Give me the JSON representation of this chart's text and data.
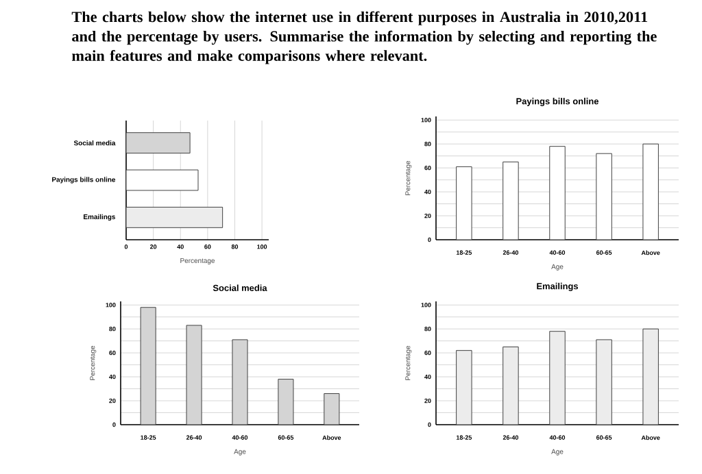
{
  "chart_data": [
    {
      "type": "bar",
      "orientation": "horizontal",
      "title": "The charts below show the internet use in different purposes in Australia in 2010,2011 and the percentage by users. Summarise the information by selecting and reporting the main features and make comparisons where relevant.",
      "categories": [
        "Social media",
        "Payings bills online",
        "Emailings"
      ],
      "values": [
        47,
        53,
        71
      ],
      "colors": [
        "#d4d4d4",
        "#ffffff",
        "#ececec"
      ],
      "xlabel": "Percentage",
      "xlim": [
        0,
        105
      ],
      "xticks": [
        0,
        20,
        40,
        60,
        80,
        100
      ],
      "grid": "x"
    },
    {
      "type": "bar",
      "title": "Payings bills online",
      "categories": [
        "18-25",
        "26-40",
        "40-60",
        "60-65",
        "Above"
      ],
      "values": [
        61,
        65,
        78,
        72,
        80
      ],
      "color": "#ffffff",
      "xlabel": "Age",
      "ylabel": "Percentage",
      "ylim": [
        0,
        103
      ],
      "yticks": [
        0,
        {
          "value": 10,
          "label": null
        },
        20,
        {
          "value": 30,
          "label": null
        },
        40,
        {
          "value": 50,
          "label": null
        },
        60,
        {
          "value": 70,
          "label": null
        },
        80,
        {
          "value": 90,
          "label": null
        },
        100
      ],
      "grid": "y"
    },
    {
      "type": "bar",
      "title": "Social media",
      "categories": [
        "18-25",
        "26-40",
        "40-60",
        "60-65",
        "Above"
      ],
      "values": [
        98,
        83,
        71,
        38,
        26
      ],
      "color": "#d4d4d4",
      "xlabel": "Age",
      "ylabel": "Percentage",
      "ylim": [
        0,
        103
      ],
      "yticks": [
        0,
        {
          "value": 10,
          "label": null
        },
        20,
        {
          "value": 30,
          "label": null
        },
        40,
        {
          "value": 50,
          "label": null
        },
        60,
        {
          "value": 70,
          "label": null
        },
        80,
        {
          "value": 90,
          "label": null
        },
        100
      ],
      "grid": "y"
    },
    {
      "type": "bar",
      "title": "Emailings",
      "categories": [
        "18-25",
        "26-40",
        "40-60",
        "60-65",
        "Above"
      ],
      "values": [
        62,
        65,
        78,
        71,
        80
      ],
      "color": "#ececec",
      "xlabel": "Age",
      "ylabel": "Percentage",
      "ylim": [
        0,
        103
      ],
      "yticks": [
        0,
        {
          "value": 10,
          "label": null
        },
        20,
        {
          "value": 30,
          "label": null
        },
        40,
        {
          "value": 50,
          "label": null
        },
        60,
        {
          "value": 70,
          "label": null
        },
        80,
        {
          "value": 90,
          "label": null
        },
        100
      ],
      "grid": "y"
    }
  ]
}
